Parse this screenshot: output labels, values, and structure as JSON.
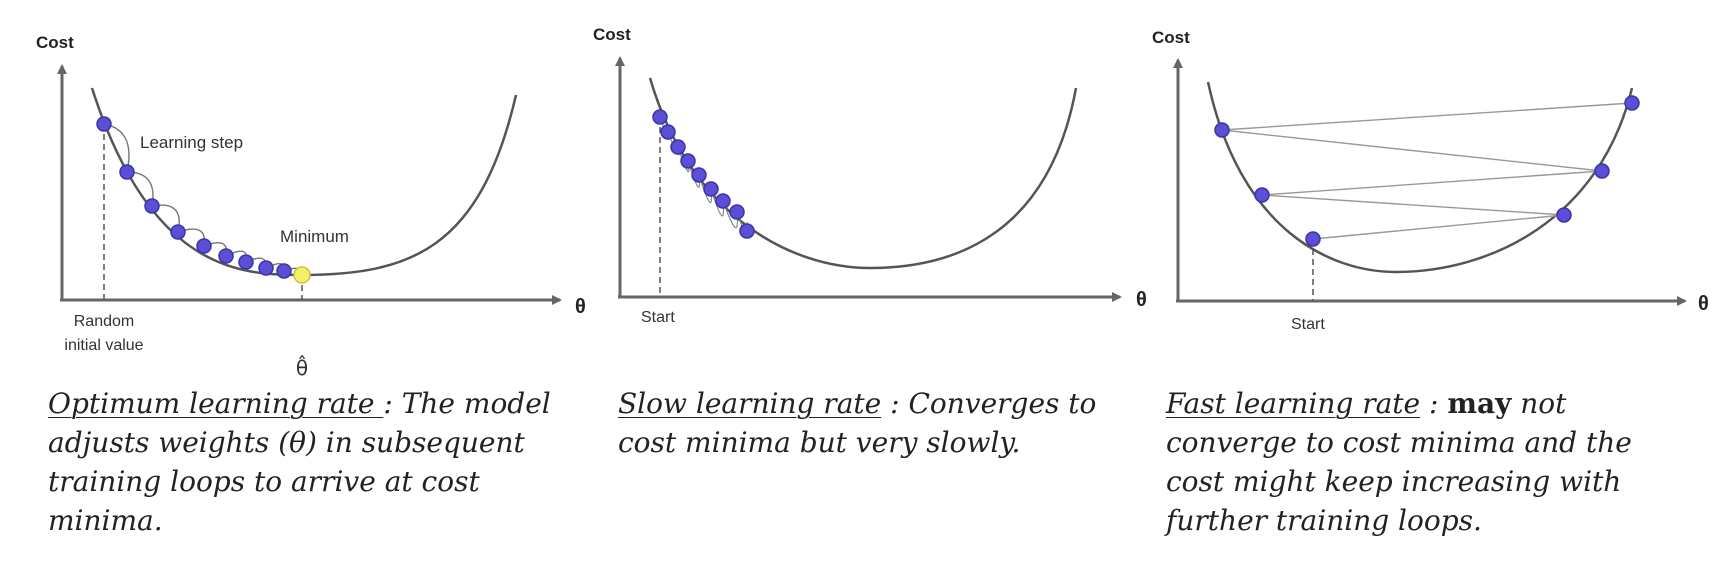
{
  "panels": [
    {
      "cost_label": "Cost",
      "theta_label": "θ",
      "learning_step_label": "Learning step",
      "minimum_label": "Minimum",
      "random_label_line1": "Random",
      "random_label_line2": "initial value",
      "theta_hat_label": "θ̂",
      "caption": {
        "title": "Optimum learning rate ",
        "sep": ": ",
        "text": "The model adjusts weights (θ) in subsequent training loops to arrive at cost minima."
      }
    },
    {
      "cost_label": "Cost",
      "theta_label": "θ",
      "start_label": "Start",
      "caption": {
        "title": "Slow learning rate",
        "sep": " : ",
        "text": "Converges to cost minima but very slowly."
      }
    },
    {
      "cost_label": "Cost",
      "theta_label": "θ",
      "start_label": "Start",
      "caption": {
        "title": "Fast learning rate",
        "sep": " : ",
        "bold": "may",
        "text": " not converge to cost minima and the cost might keep increasing with further training loops."
      }
    }
  ],
  "colors": {
    "step_point": "#5b4fd8",
    "minimum_point": "#f3f06a",
    "curve": "#555555",
    "axis": "#666666"
  }
}
